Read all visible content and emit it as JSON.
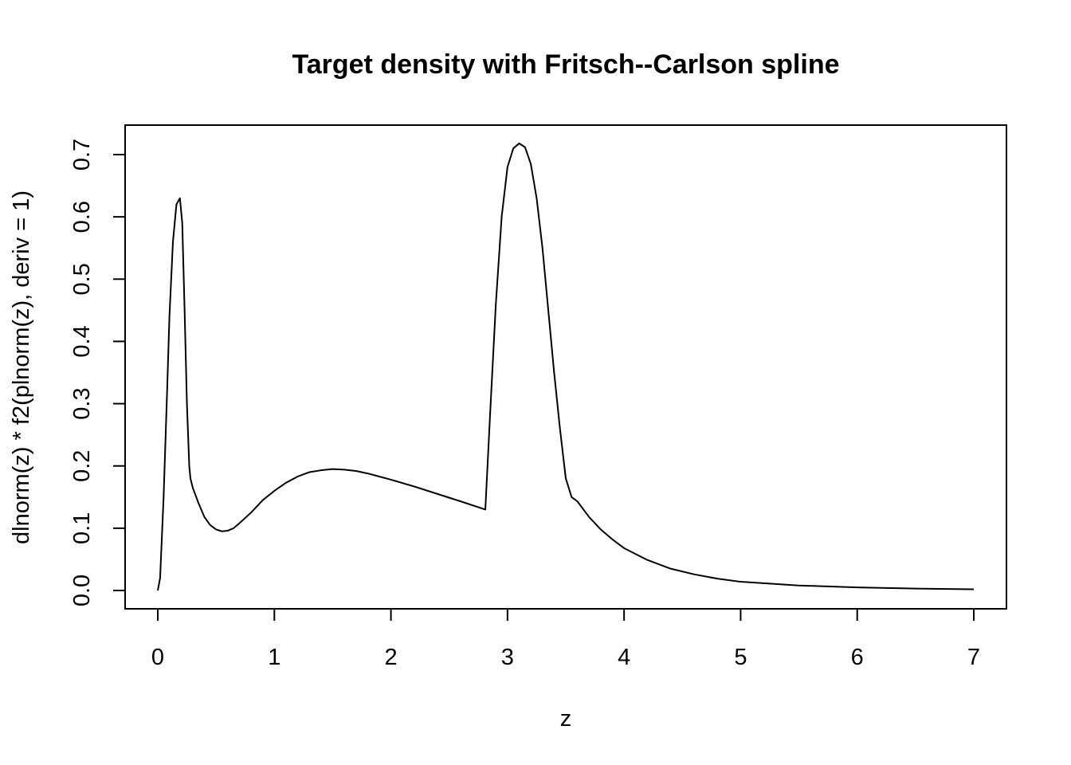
{
  "chart_data": {
    "type": "line",
    "title": "Target density with Fritsch--Carlson spline",
    "xlabel": "z",
    "ylabel": "dlnorm(z) * f2(plnorm(z), deriv = 1)",
    "xlim": [
      0,
      7
    ],
    "ylim": [
      0,
      0.72
    ],
    "grid": false,
    "legend": "none",
    "x_ticks": [
      0,
      1,
      2,
      3,
      4,
      5,
      6,
      7
    ],
    "y_ticks": [
      0.0,
      0.1,
      0.2,
      0.3,
      0.4,
      0.5,
      0.6,
      0.7
    ],
    "x_tick_labels": [
      "0",
      "1",
      "2",
      "3",
      "4",
      "5",
      "6",
      "7"
    ],
    "y_tick_labels": [
      "0.0",
      "0.1",
      "0.2",
      "0.3",
      "0.4",
      "0.5",
      "0.6",
      "0.7"
    ],
    "line_color": "#000000",
    "series": [
      {
        "x": [
          0,
          0.02,
          0.05,
          0.08,
          0.1,
          0.13,
          0.16,
          0.19,
          0.21,
          0.23,
          0.25,
          0.27,
          0.28,
          0.3,
          0.35,
          0.4,
          0.45,
          0.5,
          0.55,
          0.6,
          0.65,
          0.7,
          0.8,
          0.9,
          1.0,
          1.1,
          1.2,
          1.3,
          1.4,
          1.5,
          1.6,
          1.7,
          1.8,
          1.9,
          2.0,
          2.2,
          2.4,
          2.6,
          2.81,
          2.85,
          2.9,
          2.95,
          3.0,
          3.05,
          3.1,
          3.15,
          3.2,
          3.25,
          3.3,
          3.35,
          3.4,
          3.45,
          3.5,
          3.55,
          3.6,
          3.7,
          3.8,
          3.9,
          4.0,
          4.2,
          4.4,
          4.6,
          4.8,
          5.0,
          5.5,
          6.0,
          6.5,
          7.0
        ],
        "y": [
          0.0,
          0.02,
          0.15,
          0.32,
          0.44,
          0.56,
          0.62,
          0.63,
          0.59,
          0.45,
          0.3,
          0.2,
          0.18,
          0.165,
          0.14,
          0.118,
          0.105,
          0.098,
          0.095,
          0.096,
          0.1,
          0.108,
          0.125,
          0.145,
          0.16,
          0.173,
          0.183,
          0.19,
          0.193,
          0.195,
          0.194,
          0.192,
          0.188,
          0.183,
          0.178,
          0.167,
          0.155,
          0.143,
          0.13,
          0.28,
          0.46,
          0.6,
          0.68,
          0.71,
          0.718,
          0.712,
          0.685,
          0.63,
          0.55,
          0.45,
          0.35,
          0.26,
          0.18,
          0.15,
          0.143,
          0.118,
          0.098,
          0.082,
          0.068,
          0.049,
          0.035,
          0.026,
          0.019,
          0.014,
          0.008,
          0.005,
          0.003,
          0.002
        ]
      }
    ]
  }
}
